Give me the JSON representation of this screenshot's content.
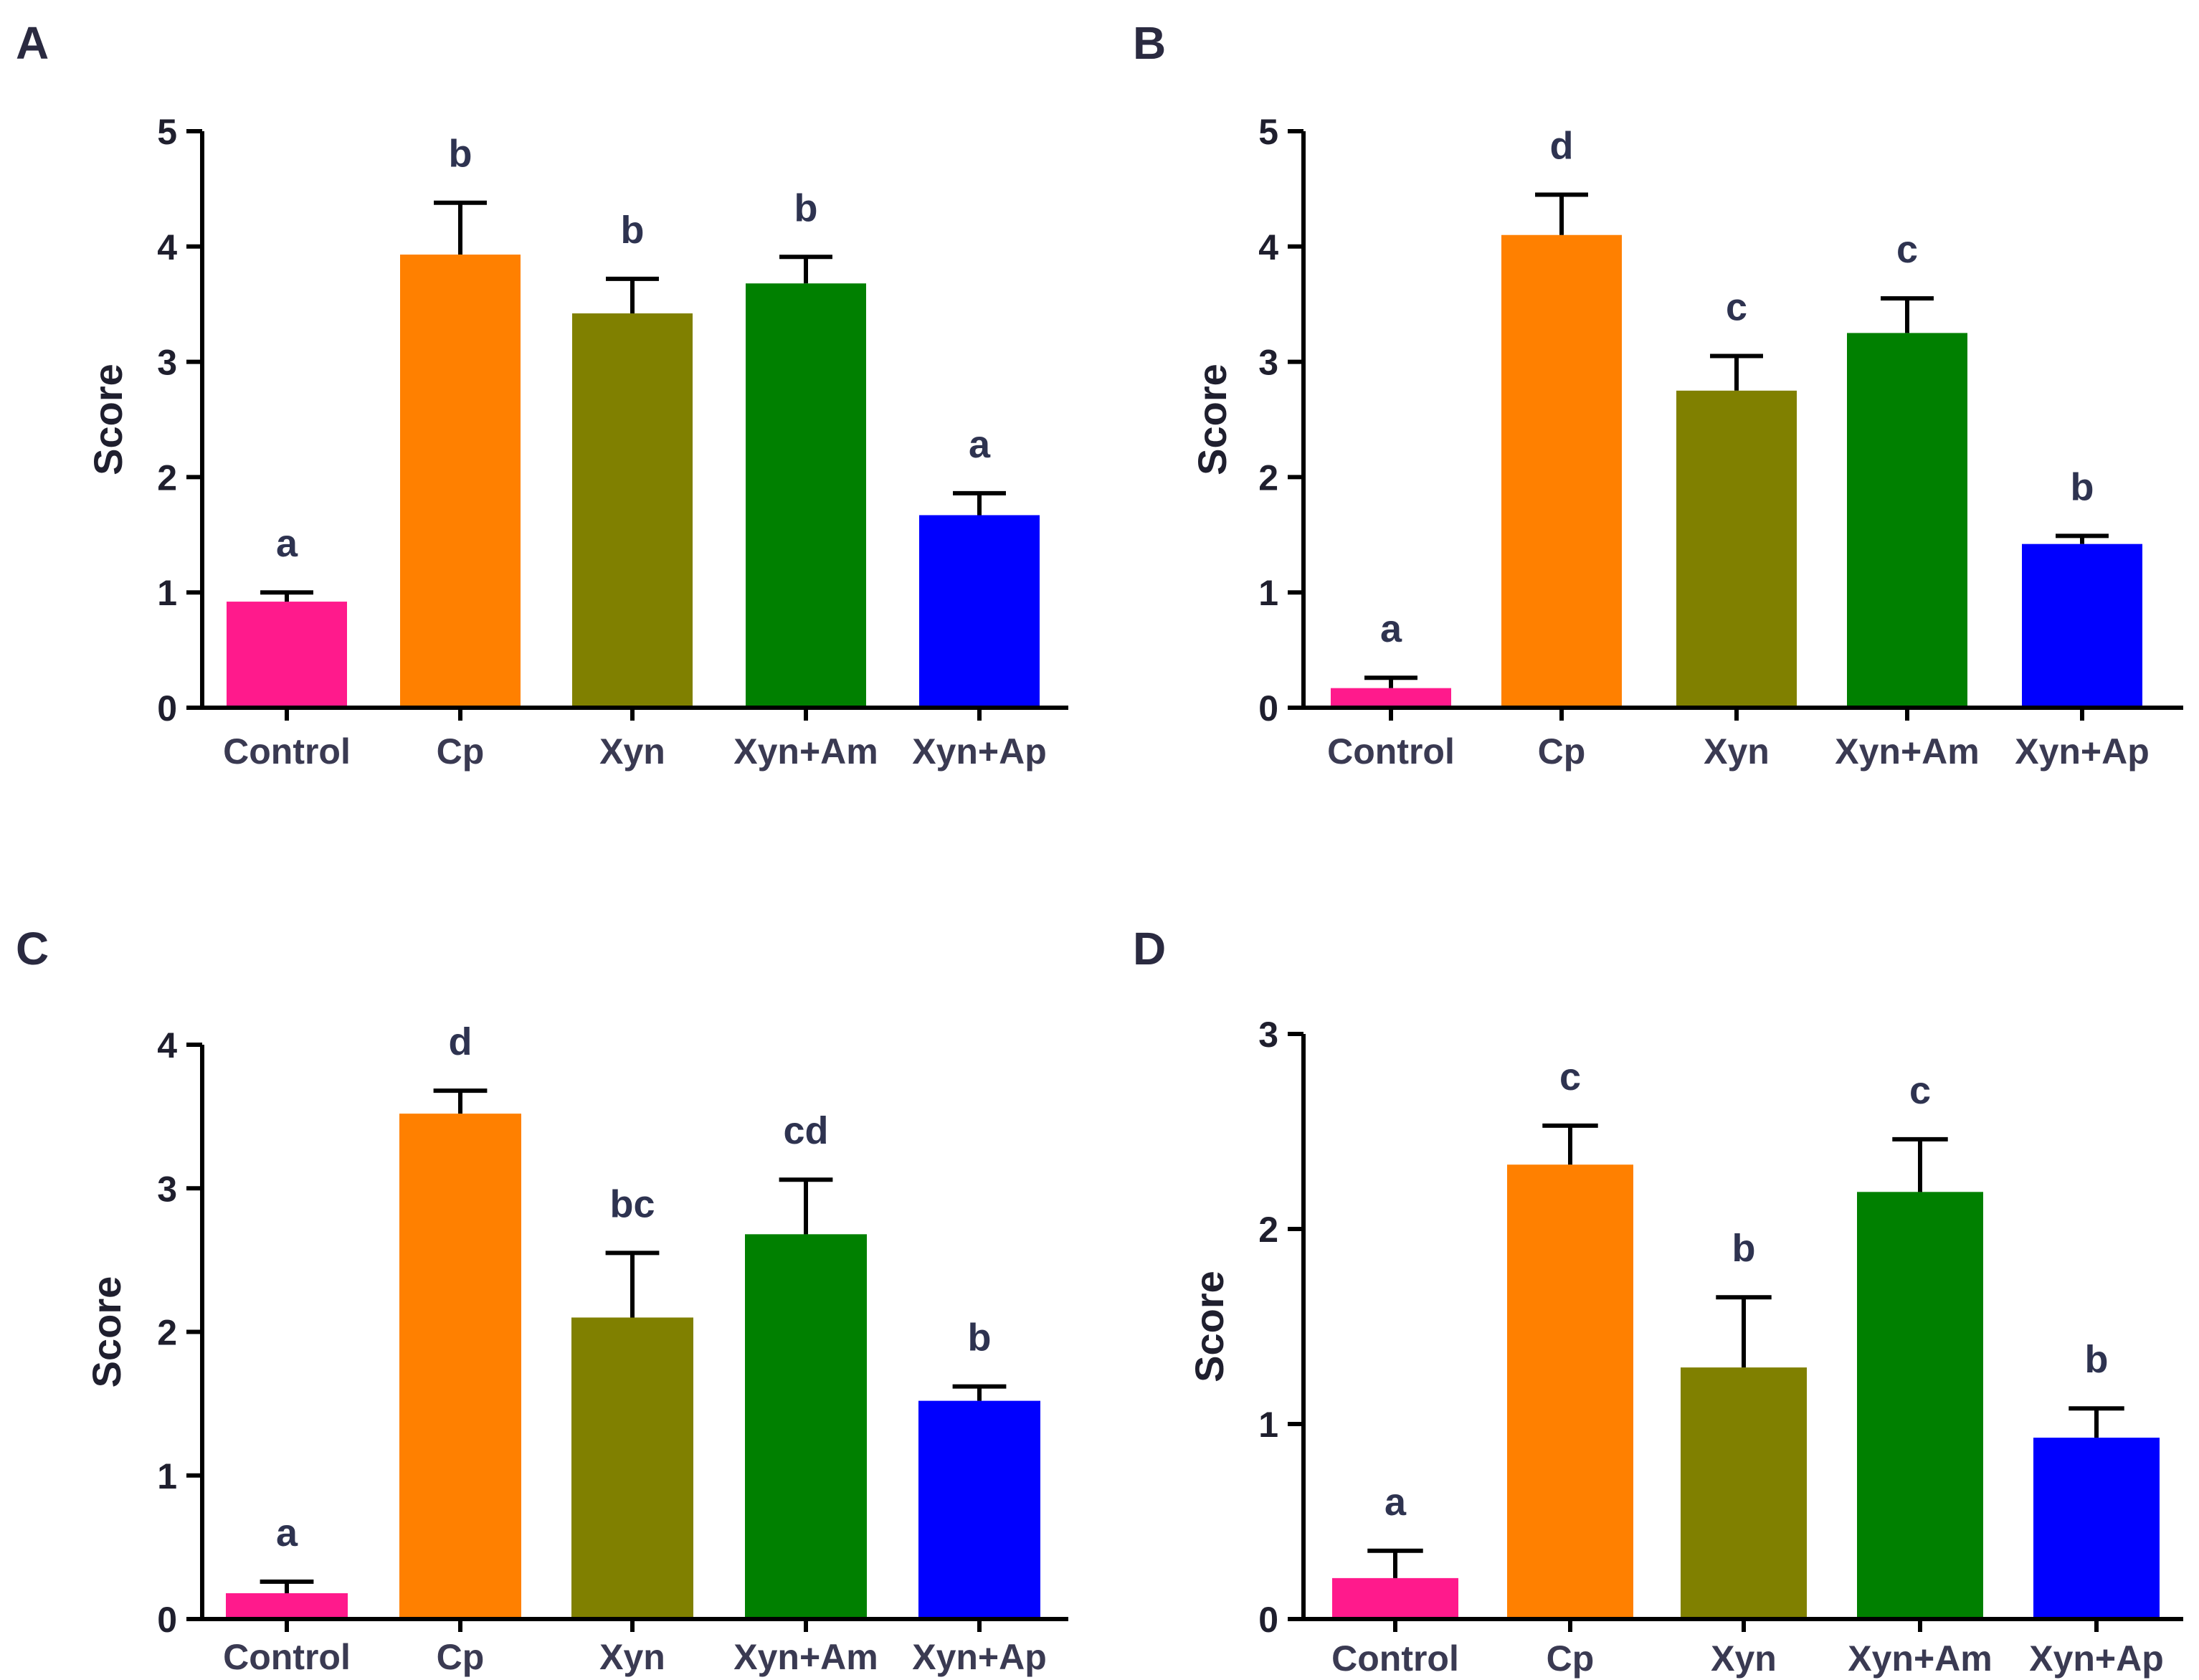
{
  "colors": {
    "Control": "#ff1a8c",
    "Cp": "#ff8000",
    "Xyn": "#808000",
    "Xyn+Am": "#008000",
    "Xyn+Ap": "#0000ff"
  },
  "chart_data": [
    {
      "panel": "A",
      "type": "bar",
      "ylabel": "Score",
      "ylim": [
        0,
        5
      ],
      "yticks": [
        "0",
        "1",
        "2",
        "3",
        "4",
        "5"
      ],
      "categories": [
        "Control",
        "Cp",
        "Xyn",
        "Xyn+Am",
        "Xyn+Ap"
      ],
      "values": [
        0.92,
        3.93,
        3.42,
        3.68,
        1.67
      ],
      "errors": [
        0.08,
        0.45,
        0.3,
        0.23,
        0.19
      ],
      "labels": [
        "a",
        "b",
        "b",
        "b",
        "a"
      ]
    },
    {
      "panel": "B",
      "type": "bar",
      "ylabel": "Score",
      "ylim": [
        0,
        5
      ],
      "yticks": [
        "0",
        "1",
        "2",
        "3",
        "4",
        "5"
      ],
      "categories": [
        "Control",
        "Cp",
        "Xyn",
        "Xyn+Am",
        "Xyn+Ap"
      ],
      "values": [
        0.17,
        4.1,
        2.75,
        3.25,
        1.42
      ],
      "errors": [
        0.09,
        0.35,
        0.3,
        0.3,
        0.07
      ],
      "labels": [
        "a",
        "d",
        "c",
        "c",
        "b"
      ]
    },
    {
      "panel": "C",
      "type": "bar",
      "ylabel": "Score",
      "ylim": [
        0,
        4
      ],
      "yticks": [
        "0",
        "1",
        "2",
        "3",
        "4"
      ],
      "categories": [
        "Control",
        "Cp",
        "Xyn",
        "Xyn+Am",
        "Xyn+Ap"
      ],
      "values": [
        0.18,
        3.52,
        2.1,
        2.68,
        1.52
      ],
      "errors": [
        0.08,
        0.16,
        0.45,
        0.38,
        0.1
      ],
      "labels": [
        "a",
        "d",
        "bc",
        "cd",
        "b"
      ]
    },
    {
      "panel": "D",
      "type": "bar",
      "ylabel": "Score",
      "ylim": [
        0,
        3
      ],
      "yticks": [
        "0",
        "1",
        "2",
        "3"
      ],
      "categories": [
        "Control",
        "Cp",
        "Xyn",
        "Xyn+Am",
        "Xyn+Ap"
      ],
      "values": [
        0.21,
        2.33,
        1.29,
        2.19,
        0.93
      ],
      "errors": [
        0.14,
        0.2,
        0.36,
        0.27,
        0.15
      ],
      "labels": [
        "a",
        "c",
        "b",
        "c",
        "b"
      ]
    }
  ]
}
